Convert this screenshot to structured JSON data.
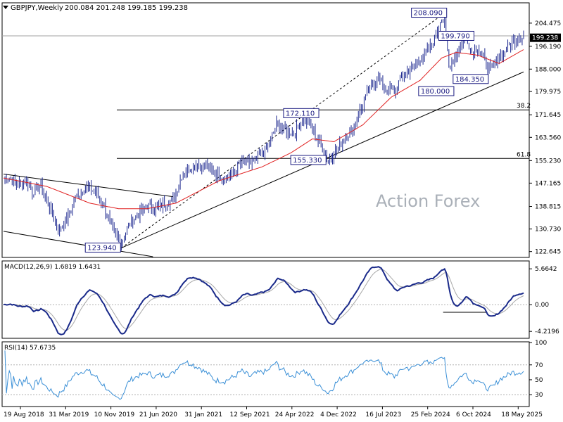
{
  "header": {
    "symbol": "GBPJPY,Weekly",
    "ohlc": "200.084 201.248 199.185 199.238"
  },
  "watermark": "Action Forex",
  "colors": {
    "candles": "#1f2a90",
    "ma": "#e02020",
    "macd_main": "#1a2a8a",
    "macd_signal": "#a8a8a8",
    "rsi": "#3a8fd6",
    "grid_dotted": "#b0b0b0",
    "trend": "#000000"
  },
  "chart_data": [
    {
      "type": "line",
      "panel": "price",
      "title": "GBPJPY,Weekly",
      "ylim": [
        120.8,
        211.5
      ],
      "y_ticks": [
        "204.475",
        "196.190",
        "188.000",
        "179.975",
        "171.645",
        "163.560",
        "155.230",
        "147.165",
        "138.815",
        "130.730",
        "122.645"
      ],
      "last_price": "199.238",
      "x_ticks": [
        "19 Aug 2018",
        "31 Mar 2019",
        "10 Nov 2019",
        "21 Jun 2020",
        "31 Jan 2021",
        "12 Sep 2021",
        "24 Apr 2022",
        "4 Dec 2022",
        "16 Jul 2023",
        "25 Feb 2024",
        "6 Oct 2024",
        "18 May 2025"
      ],
      "anchors": [
        [
          0,
          148
        ],
        [
          4,
          149
        ],
        [
          8,
          147
        ],
        [
          12,
          147
        ],
        [
          16,
          148
        ],
        [
          20,
          144
        ],
        [
          26,
          146
        ],
        [
          32,
          139
        ],
        [
          38,
          130
        ],
        [
          44,
          134
        ],
        [
          50,
          142
        ],
        [
          58,
          146
        ],
        [
          64,
          144
        ],
        [
          70,
          139
        ],
        [
          76,
          130
        ],
        [
          82,
          126
        ],
        [
          88,
          133
        ],
        [
          94,
          136
        ],
        [
          100,
          139
        ],
        [
          106,
          138
        ],
        [
          112,
          140
        ],
        [
          118,
          141
        ],
        [
          124,
          150
        ],
        [
          130,
          153
        ],
        [
          136,
          154
        ],
        [
          142,
          153
        ],
        [
          148,
          150
        ],
        [
          154,
          149
        ],
        [
          160,
          151
        ],
        [
          166,
          155
        ],
        [
          172,
          154
        ],
        [
          178,
          157
        ],
        [
          184,
          160
        ],
        [
          190,
          168
        ],
        [
          196,
          166
        ],
        [
          202,
          165
        ],
        [
          208,
          170
        ],
        [
          214,
          168
        ],
        [
          218,
          163
        ],
        [
          222,
          160
        ],
        [
          226,
          155
        ],
        [
          230,
          158
        ],
        [
          236,
          162
        ],
        [
          242,
          166
        ],
        [
          248,
          173
        ],
        [
          254,
          180
        ],
        [
          260,
          185
        ],
        [
          266,
          181
        ],
        [
          272,
          180
        ],
        [
          278,
          186
        ],
        [
          284,
          188
        ],
        [
          290,
          192
        ],
        [
          296,
          195
        ],
        [
          300,
          199
        ],
        [
          304,
          206
        ],
        [
          307,
          205
        ],
        [
          310,
          189
        ],
        [
          314,
          192
        ],
        [
          318,
          197
        ],
        [
          322,
          200
        ],
        [
          326,
          194
        ],
        [
          330,
          196
        ],
        [
          334,
          192
        ],
        [
          338,
          188
        ],
        [
          342,
          190
        ],
        [
          346,
          193
        ],
        [
          350,
          195
        ],
        [
          354,
          198
        ],
        [
          358,
          199
        ],
        [
          362,
          200
        ]
      ],
      "ma_anchors": [
        [
          0,
          149
        ],
        [
          30,
          146
        ],
        [
          60,
          140
        ],
        [
          80,
          138
        ],
        [
          100,
          138
        ],
        [
          120,
          140
        ],
        [
          150,
          148
        ],
        [
          180,
          153
        ],
        [
          200,
          158
        ],
        [
          215,
          163
        ],
        [
          230,
          162
        ],
        [
          250,
          168
        ],
        [
          270,
          178
        ],
        [
          290,
          184
        ],
        [
          305,
          192
        ],
        [
          315,
          194
        ],
        [
          330,
          193
        ],
        [
          345,
          190
        ],
        [
          362,
          195
        ]
      ],
      "weeks": 362,
      "seed": 7,
      "annotations": [
        {
          "text": "208.090",
          "x": 307,
          "y": 208.09
        },
        {
          "text": "199.790",
          "x": 326,
          "y": 199.79
        },
        {
          "text": "184.350",
          "x": 336,
          "y": 184.35
        },
        {
          "text": "180.000",
          "x": 312,
          "y": 180.0
        },
        {
          "text": "172.110",
          "x": 218,
          "y": 172.11
        },
        {
          "text": "155.330",
          "x": 223,
          "y": 155.33
        },
        {
          "text": "123.940",
          "x": 80,
          "y": 123.94
        }
      ],
      "fib_levels": [
        {
          "label": "38.2",
          "value": 173.4
        },
        {
          "label": "61.8",
          "value": 156.0
        }
      ],
      "hline": 199.9,
      "channel_upper": [
        [
          0,
          150.4
        ],
        [
          118,
          142.3
        ]
      ],
      "channel_lower": [
        [
          0,
          129.9
        ],
        [
          104,
          120.8
        ]
      ],
      "trendline": [
        [
          82,
          123.94
        ],
        [
          362,
          187.0
        ]
      ],
      "dashed_line": [
        [
          82,
          123.94
        ],
        [
          307,
          208.09
        ]
      ]
    },
    {
      "type": "line",
      "panel": "macd",
      "title": "MACD(12,26,9) 1.6819 1.6431",
      "ylim": [
        -5.2,
        6.8
      ],
      "y_ticks": [
        "5.6642",
        "0.00",
        "-4.2196"
      ],
      "series": [
        {
          "name": "MACD"
        },
        {
          "name": "Signal"
        }
      ]
    },
    {
      "type": "line",
      "panel": "rsi",
      "title": "RSI(14) 57.6735",
      "ylim": [
        15,
        100
      ],
      "y_ticks": [
        "100",
        "70",
        "50",
        "30"
      ],
      "levels": [
        70,
        30
      ]
    }
  ]
}
